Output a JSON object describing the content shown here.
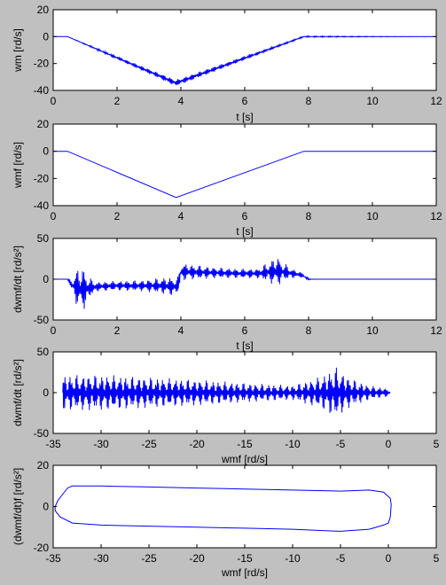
{
  "figure": {
    "background": "#c0c0c0",
    "axes_background": "#ffffff",
    "line_color": "#0000ff",
    "frame_color": "#000000"
  },
  "chart_data": [
    {
      "type": "line",
      "xlabel": "t [s]",
      "ylabel": "wm [rd/s]",
      "xlim": [
        0,
        12
      ],
      "ylim": [
        -40,
        20
      ],
      "xticks": [
        "0",
        "2",
        "4",
        "6",
        "8",
        "10",
        "12"
      ],
      "yticks": [
        "20",
        "0",
        "-20",
        "-40"
      ],
      "series": [
        {
          "x": [
            0,
            0.45,
            3.85,
            7.85,
            12
          ],
          "y": [
            0,
            0,
            -34.5,
            0,
            0
          ],
          "noise": [
            0,
            0,
            2.5,
            0.5,
            0
          ]
        }
      ]
    },
    {
      "type": "line",
      "xlabel": "t [s]",
      "ylabel": "wmf [rd/s]",
      "xlim": [
        0,
        12
      ],
      "ylim": [
        -40,
        20
      ],
      "xticks": [
        "0",
        "2",
        "4",
        "6",
        "8",
        "10",
        "12"
      ],
      "yticks": [
        "20",
        "0",
        "-20",
        "-40"
      ],
      "series": [
        {
          "x": [
            0,
            0.45,
            3.85,
            7.85,
            12
          ],
          "y": [
            0,
            0,
            -34,
            0,
            0
          ]
        }
      ]
    },
    {
      "type": "line",
      "xlabel": "t [s]",
      "ylabel": "dwmf/dt [rd/s²]",
      "xlim": [
        0,
        12
      ],
      "ylim": [
        -50,
        50
      ],
      "xticks": [
        "0",
        "2",
        "4",
        "6",
        "8",
        "10",
        "12"
      ],
      "yticks": [
        "50",
        "0",
        "-50"
      ],
      "series": [
        {
          "x": [
            0,
            0.45,
            0.6,
            0.75,
            0.9,
            1.05,
            1.2,
            1.4,
            2.0,
            2.8,
            3.4,
            3.8,
            3.9,
            4.0,
            4.2,
            5.0,
            5.8,
            6.4,
            6.8,
            7.0,
            7.2,
            7.5,
            7.8,
            8.0,
            8.2,
            12
          ],
          "y": [
            0,
            0,
            -8,
            -10,
            -12,
            -12,
            -10,
            -9,
            -8,
            -8,
            -8,
            -9,
            -8,
            9,
            9,
            8,
            7,
            7,
            9,
            10,
            9,
            7,
            5,
            0,
            0,
            0
          ],
          "noise": [
            0,
            0,
            8,
            25,
            30,
            20,
            10,
            6,
            6,
            7,
            10,
            12,
            10,
            12,
            10,
            7,
            6,
            6,
            14,
            20,
            12,
            6,
            3,
            1,
            0,
            0
          ]
        }
      ]
    },
    {
      "type": "line",
      "xlabel": "wmf [rd/s]",
      "ylabel": "dwmf/dt [rd/s²]",
      "xlim": [
        -35,
        5
      ],
      "ylim": [
        -50,
        50
      ],
      "xticks": [
        "-35",
        "-30",
        "-25",
        "-20",
        "-15",
        "-10",
        "-5",
        "0",
        "5"
      ],
      "yticks": [
        "50",
        "0",
        "-50"
      ],
      "series": [
        {
          "x": [
            -34,
            -30,
            -25,
            -20,
            -15,
            -10,
            -7,
            -5.5,
            -4,
            -2,
            0,
            0.2
          ],
          "y": [
            0,
            0,
            0,
            0,
            0,
            0,
            0,
            0,
            0,
            0,
            0,
            0
          ],
          "noise": [
            22,
            22,
            19,
            16,
            12,
            9,
            20,
            32,
            18,
            9,
            5,
            0
          ]
        }
      ]
    },
    {
      "type": "line",
      "xlabel": "wmf [rd/s]",
      "ylabel": "(dwmf/dt)f [rd/s²]",
      "xlim": [
        -35,
        5
      ],
      "ylim": [
        -20,
        20
      ],
      "xticks": [
        "-35",
        "-30",
        "-25",
        "-20",
        "-15",
        "-10",
        "-5",
        "0",
        "5"
      ],
      "yticks": [
        "20",
        "0",
        "-20"
      ],
      "series": [
        {
          "x": [
            0.3,
            0.2,
            0,
            -0.5,
            -2,
            -5,
            -10,
            -15,
            -20,
            -25,
            -30,
            -33,
            -34.3,
            -34.8,
            -34.8,
            -34.5,
            -34,
            -33.5,
            -33,
            -30,
            -25,
            -20,
            -15,
            -10,
            -5,
            -2,
            -0.5,
            0.2,
            0.3
          ],
          "y": [
            1,
            -5,
            -8,
            -9,
            -11,
            -12,
            -11,
            -10.5,
            -10,
            -9.5,
            -9,
            -8,
            -5,
            -2,
            0,
            3,
            6,
            9,
            10,
            10,
            9.5,
            9,
            8.5,
            8,
            7.5,
            8,
            7,
            4,
            1
          ]
        }
      ]
    }
  ]
}
